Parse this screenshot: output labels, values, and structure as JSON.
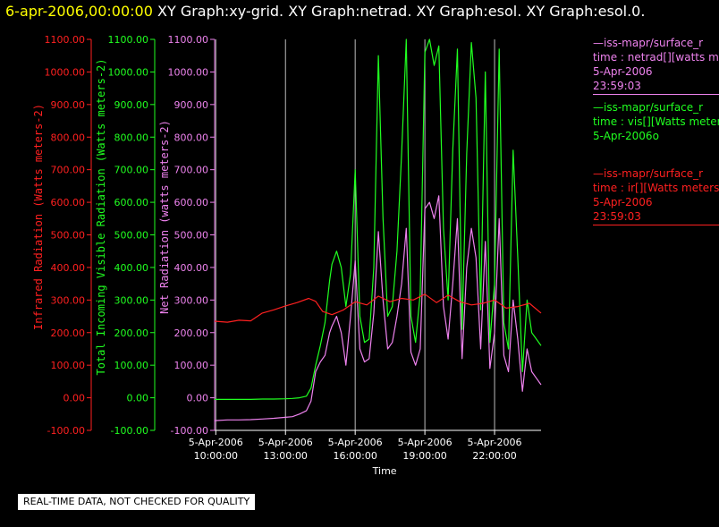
{
  "chart_data": {
    "type": "line",
    "title": {
      "date": "6-apr-2006,00:00:00",
      "graphs": [
        "XY Graph:xy-grid.",
        "XY Graph:netrad.",
        "XY Graph:esol.",
        "XY Graph:esol.0."
      ]
    },
    "xlabel": "Time",
    "x_ticks": [
      {
        "date": "5-Apr-2006",
        "time": "10:00:00",
        "hour": 10
      },
      {
        "date": "5-Apr-2006",
        "time": "13:00:00",
        "hour": 13
      },
      {
        "date": "5-Apr-2006",
        "time": "16:00:00",
        "hour": 16
      },
      {
        "date": "5-Apr-2006",
        "time": "19:00:00",
        "hour": 19
      },
      {
        "date": "5-Apr-2006",
        "time": "22:00:00",
        "hour": 22
      }
    ],
    "xlim_hours": [
      9.95,
      24.0
    ],
    "ylim": [
      -100,
      1100
    ],
    "y_tick_values": [
      -100,
      0,
      100,
      200,
      300,
      400,
      500,
      600,
      700,
      800,
      900,
      1000,
      1100
    ],
    "y_tick_labels": [
      "-100.00",
      "0.00",
      "100.00",
      "200.00",
      "300.00",
      "400.00",
      "500.00",
      "600.00",
      "700.00",
      "800.00",
      "900.00",
      "1000.00",
      "1100.00"
    ],
    "axes": [
      {
        "label": "Infrared Radiation (Watts meters-2)",
        "color": "#ff2020"
      },
      {
        "label": "Total Incoming Visible Radiation (Watts meters-2)",
        "color": "#20ff20"
      },
      {
        "label": "Net Radiation (watts meters-2)",
        "color": "#ee82ee"
      }
    ],
    "grid": "vertical",
    "series": [
      {
        "name": "netrad",
        "color": "#ee82ee",
        "x": [
          9.95,
          10.5,
          11,
          11.5,
          12,
          12.5,
          13,
          13.3,
          13.6,
          13.9,
          14.1,
          14.3,
          14.5,
          14.7,
          14.9,
          15.0,
          15.2,
          15.4,
          15.6,
          15.8,
          16.0,
          16.2,
          16.4,
          16.6,
          16.8,
          17.0,
          17.2,
          17.4,
          17.6,
          17.8,
          18.0,
          18.2,
          18.4,
          18.6,
          18.8,
          19.0,
          19.2,
          19.4,
          19.6,
          19.8,
          20.0,
          20.2,
          20.4,
          20.6,
          20.8,
          21.0,
          21.2,
          21.4,
          21.6,
          21.8,
          22.0,
          22.2,
          22.4,
          22.6,
          22.8,
          23.0,
          23.2,
          23.4,
          23.6,
          23.8,
          24.0
        ],
        "values": [
          -70,
          -68,
          -68,
          -67,
          -65,
          -63,
          -60,
          -58,
          -50,
          -40,
          -10,
          80,
          110,
          130,
          200,
          220,
          250,
          200,
          100,
          250,
          420,
          150,
          110,
          120,
          260,
          510,
          300,
          150,
          170,
          250,
          350,
          520,
          140,
          100,
          150,
          580,
          600,
          550,
          620,
          280,
          180,
          350,
          550,
          120,
          400,
          520,
          430,
          150,
          480,
          90,
          200,
          550,
          130,
          80,
          300,
          180,
          20,
          150,
          80,
          60,
          40
        ]
      },
      {
        "name": "vis",
        "color": "#20ff20",
        "x": [
          9.95,
          10.5,
          11,
          11.5,
          12,
          12.5,
          13,
          13.3,
          13.6,
          13.9,
          14.1,
          14.3,
          14.5,
          14.7,
          14.9,
          15.0,
          15.2,
          15.4,
          15.6,
          15.8,
          16.0,
          16.2,
          16.4,
          16.6,
          16.8,
          17.0,
          17.2,
          17.4,
          17.6,
          17.8,
          18.0,
          18.2,
          18.4,
          18.6,
          18.8,
          19.0,
          19.2,
          19.4,
          19.6,
          19.8,
          20.0,
          20.2,
          20.4,
          20.6,
          20.8,
          21.0,
          21.2,
          21.4,
          21.6,
          21.8,
          22.0,
          22.2,
          22.4,
          22.6,
          22.8,
          23.0,
          23.2,
          23.4,
          23.6,
          23.8,
          24.0
        ],
        "values": [
          -5,
          -5,
          -5,
          -5,
          -4,
          -4,
          -3,
          -2,
          0,
          5,
          30,
          100,
          160,
          230,
          360,
          410,
          450,
          400,
          280,
          380,
          700,
          250,
          170,
          180,
          400,
          1050,
          550,
          250,
          280,
          450,
          750,
          1100,
          250,
          170,
          320,
          1060,
          1100,
          1020,
          1080,
          520,
          300,
          760,
          1070,
          210,
          750,
          1090,
          920,
          270,
          1000,
          170,
          350,
          1070,
          230,
          150,
          760,
          430,
          80,
          300,
          200,
          180,
          160
        ]
      },
      {
        "name": "ir",
        "color": "#ff2020",
        "x": [
          9.95,
          10.5,
          11,
          11.5,
          12,
          12.5,
          13,
          13.5,
          14,
          14.3,
          14.6,
          15,
          15.5,
          16,
          16.5,
          17,
          17.5,
          18,
          18.5,
          19,
          19.5,
          20,
          20.5,
          21,
          21.5,
          22,
          22.5,
          23,
          23.5,
          24.0
        ],
        "values": [
          235,
          232,
          238,
          236,
          260,
          270,
          282,
          292,
          305,
          296,
          265,
          255,
          270,
          295,
          285,
          312,
          295,
          305,
          300,
          318,
          292,
          315,
          295,
          285,
          290,
          300,
          275,
          280,
          290,
          260
        ]
      }
    ],
    "legend": [
      {
        "color": "#ee82ee",
        "lines": [
          "—iss-mapr/surface_r",
          "time : netrad[][watts me",
          "5-Apr-2006",
          "23:59:03"
        ]
      },
      {
        "color": "#20ff20",
        "lines": [
          "—iss-mapr/surface_r",
          "time : vis[][Watts meter",
          "5-Apr-2006o"
        ]
      },
      {
        "color": "#ff2020",
        "lines": [
          "—iss-mapr/surface_r",
          "time : ir[][Watts meters",
          "5-Apr-2006",
          "23:59:03"
        ]
      }
    ]
  },
  "notice": "REAL-TIME DATA, NOT CHECKED FOR QUALITY"
}
